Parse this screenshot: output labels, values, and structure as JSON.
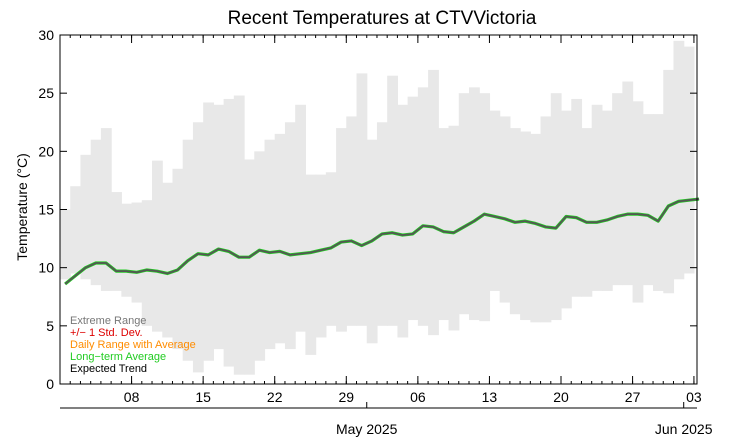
{
  "chart_data": {
    "type": "line",
    "title": "Recent Temperatures at CTVVictoria",
    "ylabel": "Temperature (°C)",
    "xlabel": "",
    "ylim": [
      0,
      30
    ],
    "yticks": [
      0,
      5,
      10,
      15,
      20,
      25,
      30
    ],
    "x_day_range": [
      0,
      62.3
    ],
    "x_ticks": [
      {
        "day": 7,
        "label": "08"
      },
      {
        "day": 14,
        "label": "15"
      },
      {
        "day": 21,
        "label": "22"
      },
      {
        "day": 28,
        "label": "29"
      },
      {
        "day": 35,
        "label": "06"
      },
      {
        "day": 42,
        "label": "13"
      },
      {
        "day": 49,
        "label": "20"
      },
      {
        "day": 56,
        "label": "27"
      },
      {
        "day": 62,
        "label": "03"
      }
    ],
    "month_labels": [
      {
        "day": 30,
        "label": "May 2025"
      },
      {
        "day": 61,
        "label": "Jun 2025"
      }
    ],
    "series": [
      {
        "name": "Extreme Range",
        "color": "#e8e8e8",
        "kind": "range",
        "lows": [
          9.0,
          9.5,
          9.0,
          8.5,
          8.0,
          8.0,
          7.5,
          7.0,
          5.0,
          4.5,
          4.0,
          3.0,
          2.0,
          1.0,
          2.0,
          3.0,
          1.5,
          0.8,
          0.8,
          2.0,
          3.0,
          3.5,
          3.0,
          4.5,
          2.5,
          4.0,
          5.0,
          4.5,
          5.0,
          5.0,
          3.5,
          5.0,
          5.0,
          4.0,
          5.5,
          5.0,
          4.2,
          5.5,
          4.6,
          6.0,
          5.5,
          5.4,
          8.0,
          7.0,
          6.0,
          5.5,
          5.3,
          5.3,
          5.5,
          6.5,
          7.5,
          7.5,
          8.0,
          8.0,
          8.5,
          8.5,
          7.0,
          8.5,
          8.0,
          7.8,
          9.0,
          9.5
        ],
        "highs": [
          15.0,
          17.0,
          19.7,
          21.0,
          22.0,
          16.5,
          15.5,
          15.6,
          15.8,
          19.2,
          17.3,
          18.5,
          21.0,
          22.5,
          24.2,
          24.0,
          24.5,
          24.8,
          19.3,
          20.0,
          21.0,
          21.5,
          22.5,
          24.0,
          18.0,
          18.0,
          18.2,
          22.0,
          23.0,
          26.7,
          21.0,
          22.5,
          26.5,
          24.0,
          24.7,
          25.5,
          27.0,
          22.0,
          22.2,
          25.0,
          25.5,
          25.0,
          23.5,
          23.0,
          22.0,
          21.7,
          21.5,
          23.0,
          25.0,
          23.5,
          24.5,
          22.0,
          24.0,
          23.5,
          25.0,
          26.0,
          24.3,
          23.2,
          23.2,
          27.0,
          29.5,
          29.0
        ]
      },
      {
        "name": "+/− 1 Std. Dev.",
        "color": "#dd0000",
        "kind": "legend-only"
      },
      {
        "name": "Daily Range with Average",
        "color": "#ff8c00",
        "kind": "legend-only"
      },
      {
        "name": "Long−term Average",
        "color": "#22cc22",
        "kind": "line",
        "x": [
          0,
          1,
          2,
          3,
          4,
          5,
          6,
          7,
          8,
          9,
          10,
          11,
          12,
          13,
          14,
          15,
          16,
          17,
          18,
          19,
          20,
          21,
          22,
          23,
          24,
          25,
          26,
          27,
          28,
          29,
          30,
          31,
          32,
          33,
          34,
          35,
          36,
          37,
          38,
          39,
          40,
          41,
          42,
          43,
          44,
          45,
          46,
          47,
          48,
          49,
          50,
          51,
          52,
          53,
          54,
          55,
          56,
          57,
          58,
          59,
          60,
          61,
          62
        ],
        "values": [
          8.6,
          9.3,
          10.0,
          10.4,
          10.4,
          9.7,
          9.7,
          9.6,
          9.8,
          9.7,
          9.5,
          9.8,
          10.6,
          11.2,
          11.1,
          11.6,
          11.4,
          10.9,
          10.9,
          11.5,
          11.3,
          11.4,
          11.1,
          11.2,
          11.3,
          11.5,
          11.7,
          12.2,
          12.3,
          11.9,
          12.3,
          12.9,
          13.0,
          12.8,
          12.9,
          13.6,
          13.5,
          13.1,
          13.0,
          13.5,
          14.0,
          14.6,
          14.4,
          14.2,
          13.9,
          14.0,
          13.8,
          13.5,
          13.4,
          14.4,
          14.3,
          13.9,
          13.9,
          14.1,
          14.4,
          14.6,
          14.6,
          14.5,
          14.0,
          15.3,
          15.7,
          15.8,
          15.9
        ]
      },
      {
        "name": "Expected Trend",
        "color": "#555555",
        "kind": "line",
        "x": [
          0,
          1,
          2,
          3,
          4,
          5,
          6,
          7,
          8,
          9,
          10,
          11,
          12,
          13,
          14,
          15,
          16,
          17,
          18,
          19,
          20,
          21,
          22,
          23,
          24,
          25,
          26,
          27,
          28,
          29,
          30,
          31,
          32,
          33,
          34,
          35,
          36,
          37,
          38,
          39,
          40,
          41,
          42,
          43,
          44,
          45,
          46,
          47,
          48,
          49,
          50,
          51,
          52,
          53,
          54,
          55,
          56,
          57,
          58,
          59,
          60,
          61,
          62
        ],
        "values": [
          8.6,
          9.3,
          10.0,
          10.4,
          10.4,
          9.7,
          9.7,
          9.6,
          9.8,
          9.7,
          9.5,
          9.8,
          10.6,
          11.2,
          11.1,
          11.6,
          11.4,
          10.9,
          10.9,
          11.5,
          11.3,
          11.4,
          11.1,
          11.2,
          11.3,
          11.5,
          11.7,
          12.2,
          12.3,
          11.9,
          12.3,
          12.9,
          13.0,
          12.8,
          12.9,
          13.6,
          13.5,
          13.1,
          13.0,
          13.5,
          14.0,
          14.6,
          14.4,
          14.2,
          13.9,
          14.0,
          13.8,
          13.5,
          13.4,
          14.4,
          14.3,
          13.9,
          13.9,
          14.1,
          14.4,
          14.6,
          14.6,
          14.5,
          14.0,
          15.3,
          15.7,
          15.8,
          15.9
        ]
      }
    ],
    "legend": {
      "position": "bottom-left",
      "entries": [
        {
          "label": "Extreme Range",
          "color": "#777777"
        },
        {
          "label": "+/− 1 Std. Dev.",
          "color": "#dd0000"
        },
        {
          "label": "Daily Range with Average",
          "color": "#ff8c00"
        },
        {
          "label": "Long−term Average",
          "color": "#22cc22"
        },
        {
          "label": "Expected Trend",
          "color": "#000000"
        }
      ]
    }
  }
}
